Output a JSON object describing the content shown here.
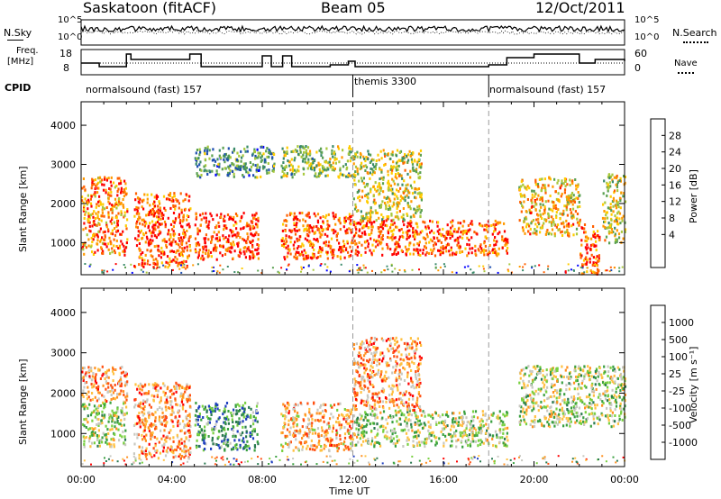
{
  "header": {
    "station": "Saskatoon (fitACF)",
    "beam": "Beam 05",
    "date": "12/Oct/2011"
  },
  "top_panels": {
    "nsky_label": "N.Sky",
    "nsky_ticks": [
      "10^5",
      "10^0"
    ],
    "nsearch_ticks": [
      "10^5",
      "10^0"
    ],
    "nsearch_label": "N.Search",
    "freq_label_1": "Freq.",
    "freq_label_2": "[MHz]",
    "freq_ticks": [
      "18",
      "8"
    ],
    "nave_ticks": [
      "60",
      "0"
    ],
    "nave_label": "Nave",
    "cpid_label": "CPID",
    "cpid_segments": [
      {
        "label": "normalsound (fast) 157",
        "start_h": 0,
        "end_h": 12
      },
      {
        "label": "themis 3300",
        "start_h": 12,
        "end_h": 18
      },
      {
        "label": "normalsound (fast) 157",
        "start_h": 18,
        "end_h": 24
      }
    ]
  },
  "panels": {
    "power": {
      "y_label": "Slant Range [km]",
      "colorbar_label": "Power [dB]",
      "colorbar_ticks": [
        "28",
        "24",
        "20",
        "16",
        "12",
        "8",
        "4"
      ],
      "colors": [
        "#0000ff",
        "#1f4fb0",
        "#3a8a6a",
        "#5aa050",
        "#a8c83c",
        "#ffcc00",
        "#ff9900",
        "#ff6000",
        "#ff0000"
      ]
    },
    "velocity": {
      "y_label": "Slant Range [km]",
      "colorbar_label": "Velocity [m s⁻¹]",
      "colorbar_ticks": [
        "1000",
        "500",
        "100",
        "25",
        "-25",
        "-100",
        "-500",
        "-1000"
      ],
      "colors": [
        "#2040c0",
        "#2a7a50",
        "#3aa040",
        "#78d040",
        "#c8c8c0",
        "#ffc040",
        "#ff9020",
        "#ff5010",
        "#ff0000"
      ]
    }
  },
  "x_axis_label": "Time UT",
  "chart_data": [
    {
      "type": "heatmap",
      "title": "Power",
      "xlabel": "Time UT",
      "ylabel": "Slant Range [km]",
      "xlim": [
        0,
        24
      ],
      "ylim": [
        180,
        4600
      ],
      "x_ticks": [
        "00:00",
        "04:00",
        "08:00",
        "12:00",
        "16:00",
        "20:00",
        "00:00"
      ],
      "y_ticks": [
        1000,
        2000,
        3000,
        4000
      ],
      "colorbar": {
        "label": "Power [dB]",
        "ticks": [
          4,
          8,
          12,
          16,
          20,
          24,
          28
        ],
        "range": [
          0,
          32
        ]
      },
      "regions": [
        {
          "t0": 0.0,
          "t1": 2.0,
          "r0": 700,
          "r1": 2700,
          "level": 0.75
        },
        {
          "t0": 2.3,
          "t1": 4.8,
          "r0": 400,
          "r1": 2300,
          "level": 0.85
        },
        {
          "t0": 5.0,
          "t1": 7.8,
          "r0": 600,
          "r1": 1800,
          "level": 0.9
        },
        {
          "t0": 5.0,
          "t1": 8.5,
          "r0": 2700,
          "r1": 3500,
          "level": 0.35
        },
        {
          "t0": 8.8,
          "t1": 12.0,
          "r0": 600,
          "r1": 1800,
          "level": 0.85
        },
        {
          "t0": 8.8,
          "t1": 12.0,
          "r0": 2700,
          "r1": 3500,
          "level": 0.45
        },
        {
          "t0": 12.0,
          "t1": 18.8,
          "r0": 700,
          "r1": 1600,
          "level": 0.85
        },
        {
          "t0": 12.0,
          "t1": 15.0,
          "r0": 1600,
          "r1": 3400,
          "level": 0.55
        },
        {
          "t0": 19.3,
          "t1": 22.0,
          "r0": 1200,
          "r1": 2700,
          "level": 0.65
        },
        {
          "t0": 22.0,
          "t1": 22.9,
          "r0": 200,
          "r1": 1500,
          "level": 0.85
        },
        {
          "t0": 23.0,
          "t1": 24.0,
          "r0": 1000,
          "r1": 2800,
          "level": 0.55
        }
      ]
    },
    {
      "type": "heatmap",
      "title": "Velocity",
      "xlabel": "Time UT",
      "ylabel": "Slant Range [km]",
      "xlim": [
        0,
        24
      ],
      "ylim": [
        180,
        4600
      ],
      "x_ticks": [
        "00:00",
        "04:00",
        "08:00",
        "12:00",
        "16:00",
        "20:00",
        "00:00"
      ],
      "y_ticks": [
        1000,
        2000,
        3000,
        4000
      ],
      "colorbar": {
        "label": "Velocity [m s⁻¹]",
        "ticks": [
          1000,
          500,
          100,
          25,
          -25,
          -100,
          -500,
          -1000
        ]
      },
      "regions": [
        {
          "t0": 0.0,
          "t1": 2.0,
          "r0": 1800,
          "r1": 2700,
          "level": 0.7
        },
        {
          "t0": 0.0,
          "t1": 2.0,
          "r0": 700,
          "r1": 1800,
          "level": 0.45
        },
        {
          "t0": 2.3,
          "t1": 4.8,
          "r0": 400,
          "r1": 2300,
          "level": 0.7
        },
        {
          "t0": 5.0,
          "t1": 7.8,
          "r0": 600,
          "r1": 1800,
          "level": 0.25
        },
        {
          "t0": 8.8,
          "t1": 12.0,
          "r0": 600,
          "r1": 1800,
          "level": 0.65
        },
        {
          "t0": 12.0,
          "t1": 18.8,
          "r0": 700,
          "r1": 1600,
          "level": 0.45
        },
        {
          "t0": 12.0,
          "t1": 15.0,
          "r0": 1600,
          "r1": 3400,
          "level": 0.7
        },
        {
          "t0": 19.3,
          "t1": 24.0,
          "r0": 1200,
          "r1": 2700,
          "level": 0.45
        }
      ]
    }
  ]
}
